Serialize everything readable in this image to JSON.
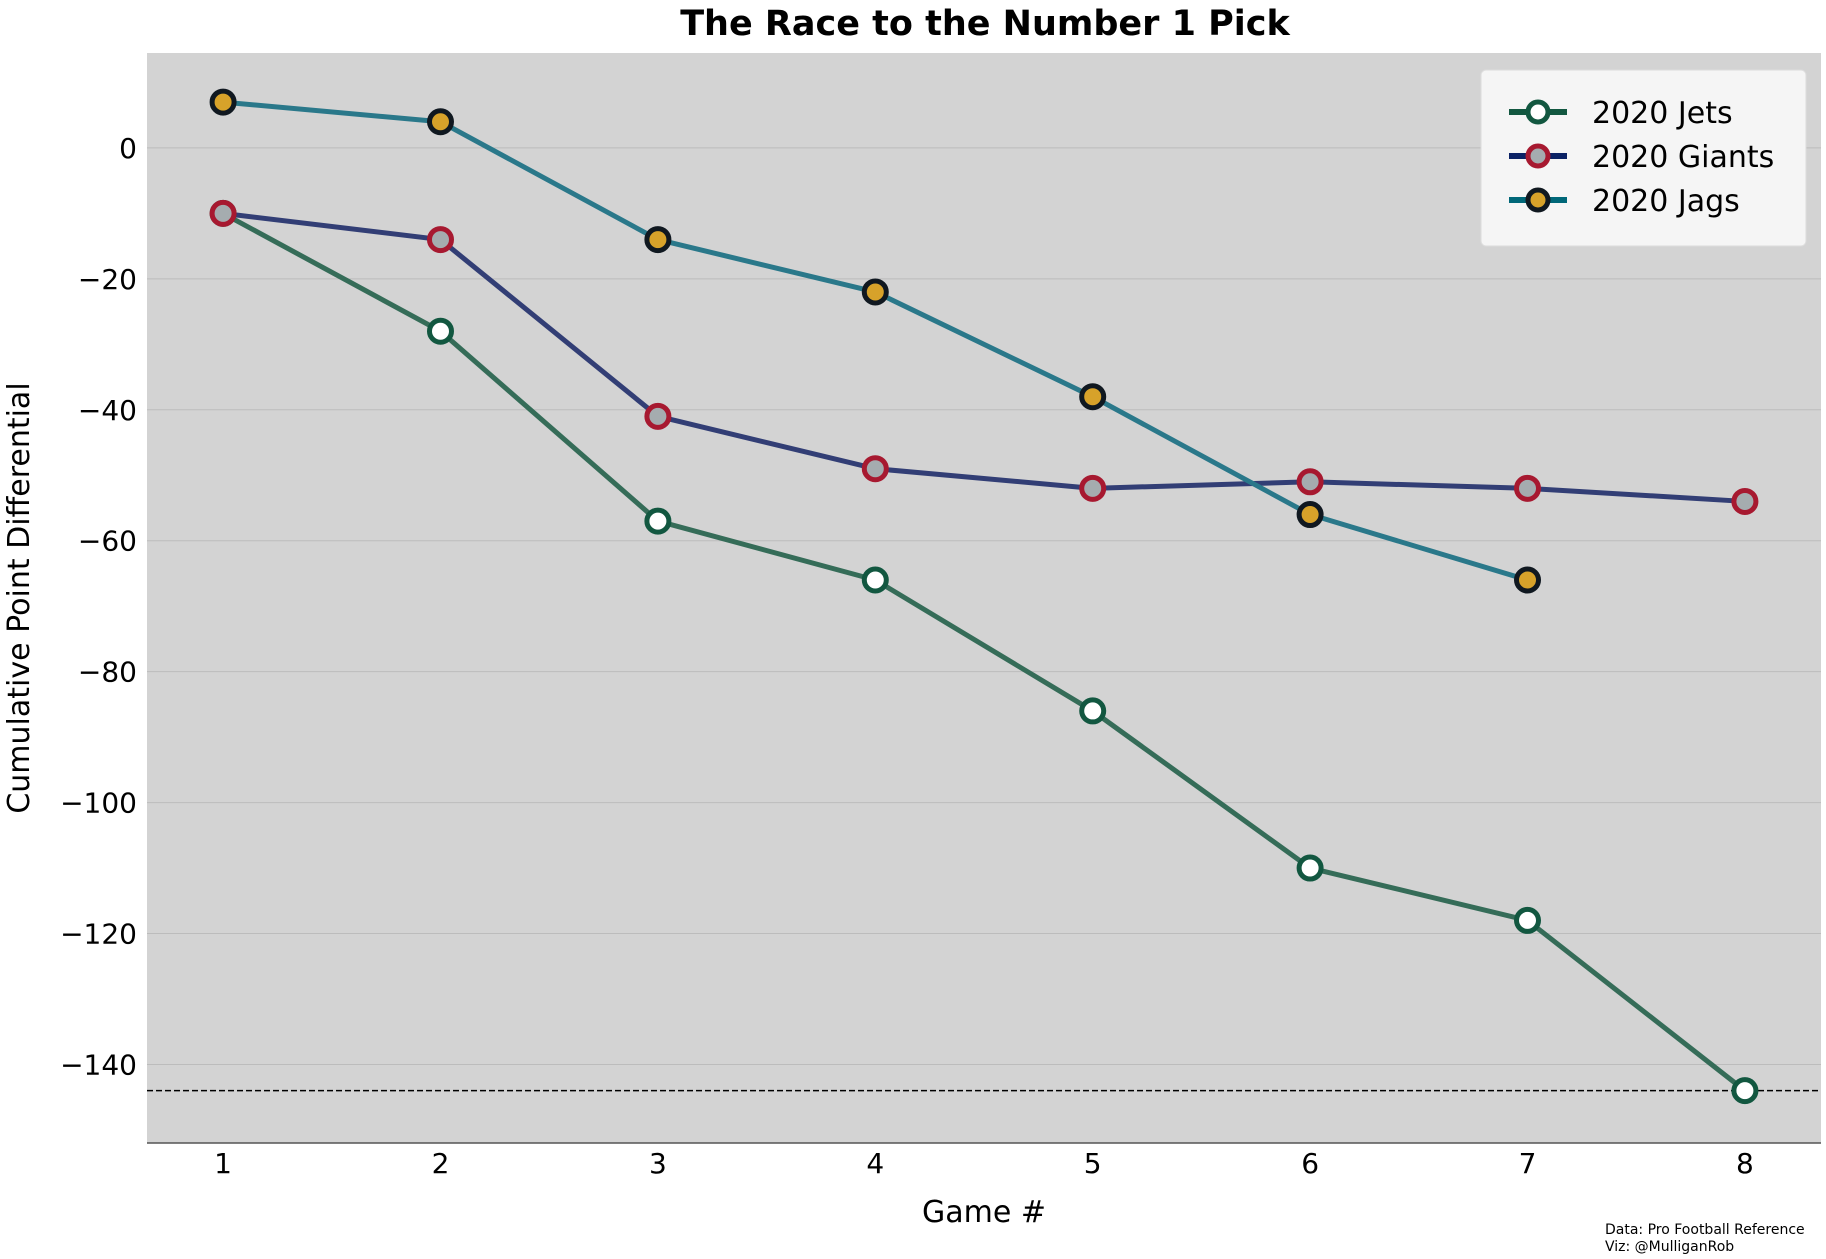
{
  "chart_data": {
    "type": "line",
    "title": "The Race to the Number 1 Pick",
    "xlabel": "Game #",
    "ylabel": "Cumulative Point Differential",
    "x": [
      1,
      2,
      3,
      4,
      5,
      6,
      7,
      8
    ],
    "xlim": [
      0.65,
      8.35
    ],
    "ylim": [
      -152,
      14.5
    ],
    "xticks": [
      "1",
      "2",
      "3",
      "4",
      "5",
      "6",
      "7",
      "8"
    ],
    "yticks": [
      0,
      -20,
      -40,
      -60,
      -80,
      -100,
      -120,
      -140
    ],
    "ytick_labels": [
      "0",
      "−20",
      "−40",
      "−60",
      "−80",
      "−100",
      "−120",
      "−140"
    ],
    "grid": "horizontal",
    "background": "#d3d3d3",
    "reference_line": {
      "y": -144,
      "style": "dashed",
      "color": "#000000"
    },
    "legend_position": "top-right",
    "series": [
      {
        "name": "2020 Jets",
        "x": [
          1,
          2,
          3,
          4,
          5,
          6,
          7,
          8
        ],
        "values": [
          -10,
          -28,
          -57,
          -66,
          -86,
          -110,
          -118,
          -144
        ],
        "line_color": "#356c58",
        "legend_line_color": "#125740",
        "marker_fill": "#ffffff",
        "marker_edge": "#125740"
      },
      {
        "name": "2020 Giants",
        "x": [
          1,
          2,
          3,
          4,
          5,
          6,
          7,
          8
        ],
        "values": [
          -10,
          -14,
          -41,
          -49,
          -52,
          -51,
          -52,
          -54
        ],
        "line_color": "#323e75",
        "legend_line_color": "#0b2265",
        "marker_fill": "#a5acaf",
        "marker_edge": "#a71930"
      },
      {
        "name": "2020 Jags",
        "x": [
          1,
          2,
          3,
          4,
          5,
          6,
          7
        ],
        "values": [
          7,
          4,
          -14,
          -22,
          -38,
          -56,
          -66
        ],
        "line_color": "#2a788a",
        "legend_line_color": "#006778",
        "marker_fill": "#d7a22a",
        "marker_edge": "#101820"
      }
    ]
  },
  "credit": {
    "source": "Data: Pro Football Reference",
    "viz": "Viz: @MulliganRob"
  }
}
